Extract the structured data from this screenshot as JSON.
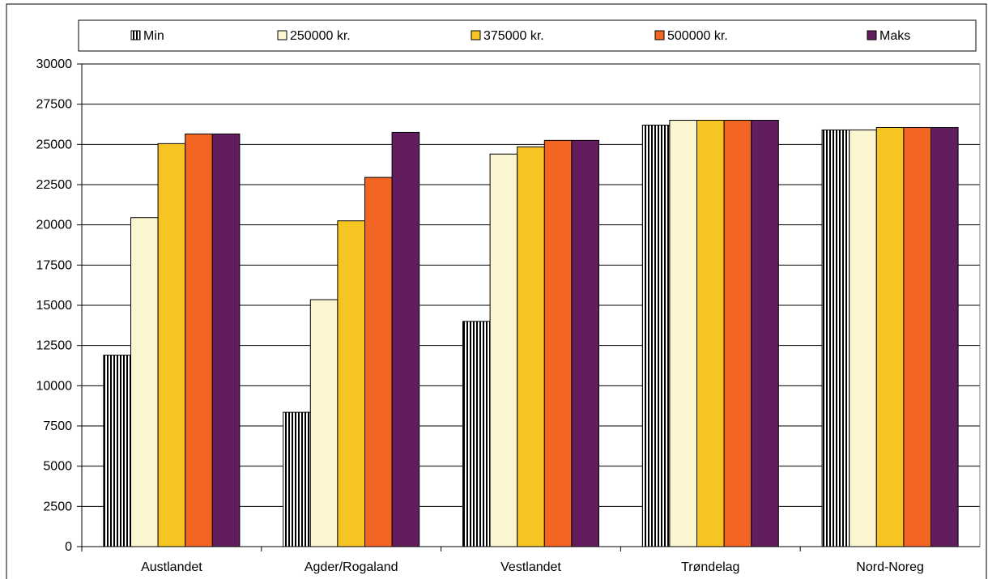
{
  "chart_data": {
    "type": "bar",
    "categories": [
      "Austlandet",
      "Agder/Rogaland",
      "Vestlandet",
      "Trøndelag",
      "Nord-Noreg"
    ],
    "series": [
      {
        "name": "Min",
        "values": [
          11900,
          8350,
          14000,
          26200,
          25900
        ],
        "color": "#ffffff",
        "pattern": "vertical-stripes"
      },
      {
        "name": "250000 kr.",
        "values": [
          20450,
          15350,
          24400,
          26500,
          25900
        ],
        "color": "#fbf6cf"
      },
      {
        "name": "375000 kr.",
        "values": [
          25050,
          20250,
          24850,
          26500,
          26050
        ],
        "color": "#f6c524"
      },
      {
        "name": "500000 kr.",
        "values": [
          25650,
          22950,
          25250,
          26500,
          26050
        ],
        "color": "#f26522"
      },
      {
        "name": "Maks",
        "values": [
          25650,
          25750,
          25250,
          26500,
          26050
        ],
        "color": "#621d5e"
      }
    ],
    "ylim": [
      0,
      30000
    ],
    "yticks": [
      0,
      2500,
      5000,
      7500,
      10000,
      12500,
      15000,
      17500,
      20000,
      22500,
      25000,
      27500,
      30000
    ],
    "grid": true,
    "legend_position": "top",
    "title": "",
    "xlabel": "",
    "ylabel": ""
  }
}
